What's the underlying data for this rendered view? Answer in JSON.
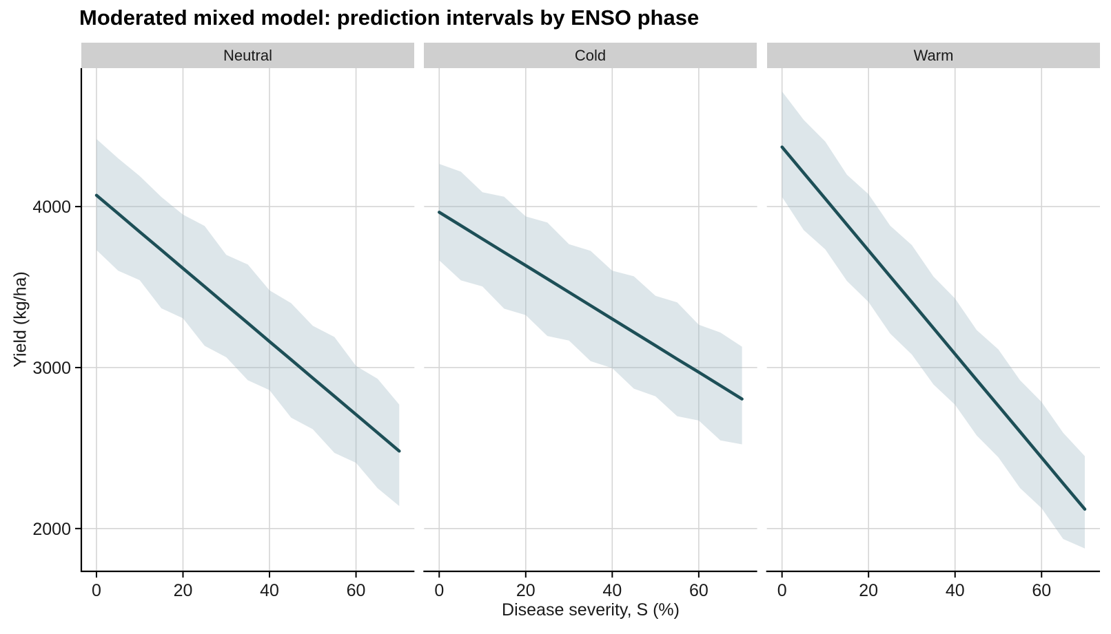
{
  "title": "Moderated mixed model: prediction intervals by ENSO phase",
  "chart_data": {
    "type": "line",
    "title": "Moderated mixed model: prediction intervals by ENSO phase",
    "xlabel": "Disease severity, S (%)",
    "ylabel": "Yield (kg/ha)",
    "facets": [
      "Neutral",
      "Cold",
      "Warm"
    ],
    "legend": "none",
    "grid": true,
    "x_ticks": [
      0,
      20,
      40,
      60
    ],
    "y_ticks": [
      2000,
      3000,
      4000
    ],
    "xlim": [
      -3.5,
      73.5
    ],
    "ylim": [
      1734,
      4860
    ],
    "x": [
      0,
      5,
      10,
      15,
      20,
      25,
      30,
      35,
      40,
      45,
      50,
      55,
      60,
      65,
      70
    ],
    "series": [
      {
        "name": "Neutral",
        "fit": [
          4070,
          3957,
          3843,
          3730,
          3616,
          3503,
          3389,
          3276,
          3162,
          3049,
          2935,
          2822,
          2708,
          2595,
          2481
        ],
        "hi": [
          4420,
          4300,
          4190,
          4060,
          3950,
          3880,
          3700,
          3640,
          3480,
          3400,
          3260,
          3190,
          3010,
          2930,
          2770
        ],
        "lo": [
          3730,
          3602,
          3543,
          3368,
          3306,
          3135,
          3064,
          2921,
          2860,
          2689,
          2617,
          2470,
          2408,
          2250,
          2140
        ]
      },
      {
        "name": "Cold",
        "fit": [
          3965,
          3882,
          3799,
          3716,
          3634,
          3551,
          3468,
          3385,
          3302,
          3219,
          3136,
          3053,
          2971,
          2888,
          2805
        ],
        "hi": [
          4265,
          4217,
          4089,
          4061,
          3939,
          3901,
          3766,
          3725,
          3602,
          3567,
          3446,
          3405,
          3266,
          3218,
          3130
        ],
        "lo": [
          3666,
          3542,
          3504,
          3366,
          3326,
          3196,
          3168,
          3040,
          2997,
          2869,
          2821,
          2698,
          2671,
          2548,
          2523
        ]
      },
      {
        "name": "Warm",
        "fit": [
          4370,
          4209,
          4049,
          3888,
          3727,
          3566,
          3406,
          3245,
          3084,
          2923,
          2763,
          2602,
          2441,
          2280,
          2120
        ],
        "hi": [
          4715,
          4539,
          4404,
          4198,
          4077,
          3881,
          3761,
          3565,
          3429,
          3233,
          3113,
          2922,
          2786,
          2595,
          2450
        ],
        "lo": [
          4060,
          3854,
          3734,
          3538,
          3407,
          3211,
          3081,
          2895,
          2769,
          2578,
          2443,
          2252,
          2126,
          1935,
          1876
        ]
      }
    ],
    "colors": {
      "line": "#1d4f57",
      "ribbon": "#9fb6c4",
      "ribbon_opacity": "0.35",
      "grid": "#d5d5d5",
      "strip_bg": "#cfcfcf",
      "axis": "#000000",
      "tick_text": "#1a1a1a"
    }
  }
}
